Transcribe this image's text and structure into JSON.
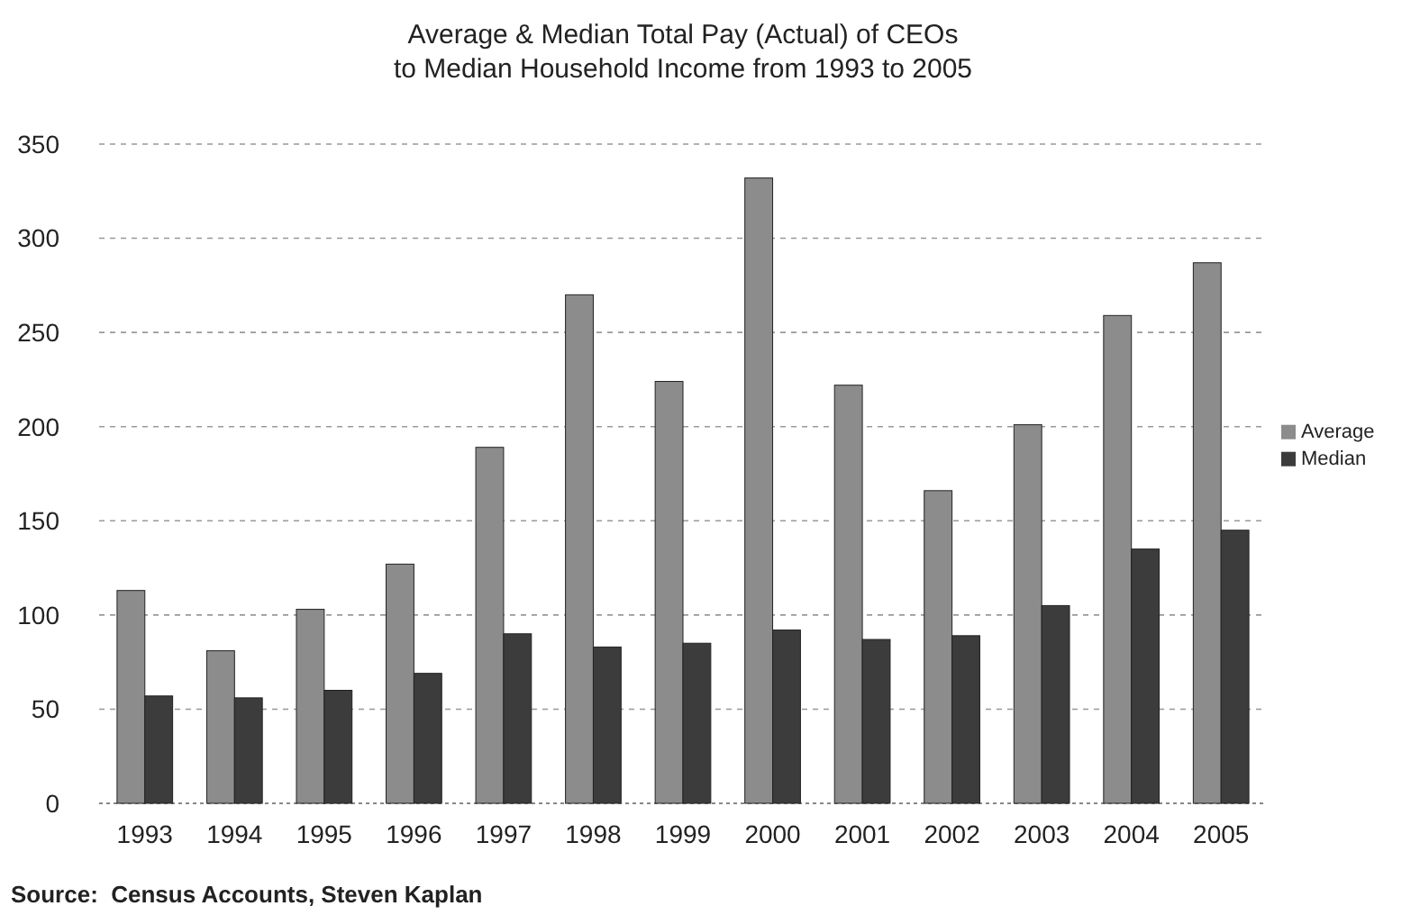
{
  "chart_data": {
    "type": "bar",
    "title": "Average & Median Total Pay (Actual) of CEOs\nto Median Household Income from 1993 to 2005",
    "categories": [
      "1993",
      "1994",
      "1995",
      "1996",
      "1997",
      "1998",
      "1999",
      "2000",
      "2001",
      "2002",
      "2003",
      "2004",
      "2005"
    ],
    "series": [
      {
        "name": "Average",
        "color": "#8c8c8c",
        "values": [
          113,
          81,
          103,
          127,
          189,
          270,
          224,
          332,
          222,
          166,
          201,
          259,
          287
        ]
      },
      {
        "name": "Median",
        "color": "#3c3c3c",
        "values": [
          57,
          56,
          60,
          69,
          90,
          83,
          85,
          92,
          87,
          89,
          105,
          135,
          145
        ]
      }
    ],
    "ylim": [
      0,
      350
    ],
    "yticks": [
      0,
      50,
      100,
      150,
      200,
      250,
      300,
      350
    ],
    "grid": "y",
    "legend": "right",
    "annotations": [
      "Source:  Census Accounts, Steven Kaplan"
    ]
  }
}
